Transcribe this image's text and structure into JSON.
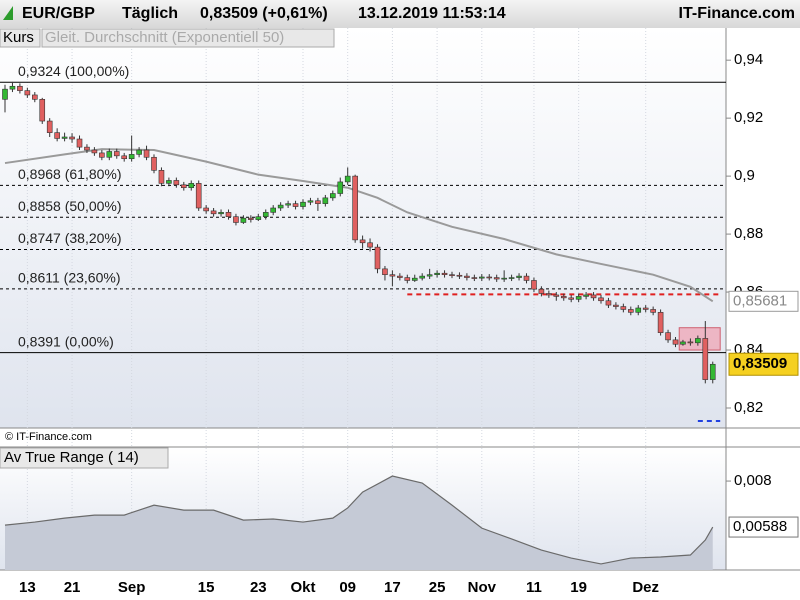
{
  "header": {
    "symbol": "EUR/GBP",
    "period": "Täglich",
    "quote": "0,83509 (+0,61%)",
    "timestamp": "13.12.2019 11:53:14",
    "brand": "IT-Finance.com",
    "copyright": "© IT-Finance.com"
  },
  "chart_data": [
    {
      "type": "candlestick",
      "categories": [
        null,
        null,
        null,
        "13",
        null,
        null,
        null,
        null,
        null,
        "21",
        null,
        null,
        null,
        null,
        null,
        null,
        null,
        "Sep",
        null,
        null,
        null,
        null,
        null,
        null,
        null,
        null,
        null,
        "15",
        null,
        null,
        null,
        null,
        null,
        null,
        "23",
        null,
        null,
        null,
        null,
        null,
        "Okt",
        null,
        null,
        null,
        null,
        null,
        "09",
        null,
        null,
        null,
        null,
        null,
        "17",
        null,
        null,
        null,
        null,
        null,
        "25",
        null,
        null,
        null,
        null,
        null,
        "Nov",
        null,
        null,
        null,
        null,
        null,
        null,
        "11",
        null,
        null,
        null,
        null,
        null,
        "19",
        null,
        null,
        null,
        null,
        null,
        null,
        null,
        null,
        "Dez",
        null,
        null,
        null,
        null,
        null,
        null,
        null,
        null,
        null
      ],
      "series": [
        {
          "name": "Kurs",
          "up_color": "#33b833",
          "down_color": "#e06060",
          "open": [
            0.9265,
            0.93,
            0.931,
            0.9295,
            0.928,
            0.9265,
            0.919,
            0.915,
            0.913,
            0.9135,
            0.9128,
            0.91,
            0.909,
            0.908,
            0.9065,
            0.9085,
            0.907,
            0.906,
            0.9075,
            0.909,
            0.9065,
            0.902,
            0.8975,
            0.8985,
            0.897,
            0.896,
            0.8975,
            0.889,
            0.888,
            0.887,
            0.8875,
            0.886,
            0.884,
            0.8855,
            0.885,
            0.886,
            0.8875,
            0.889,
            0.89,
            0.8905,
            0.8895,
            0.891,
            0.8915,
            0.8905,
            0.8925,
            0.894,
            0.898,
            0.9,
            0.878,
            0.877,
            0.8755,
            0.868,
            0.866,
            0.8655,
            0.865,
            0.864,
            0.8648,
            0.8655,
            0.866,
            0.8665,
            0.866,
            0.8658,
            0.8655,
            0.865,
            0.8648,
            0.8652,
            0.865,
            0.8645,
            0.8648,
            0.865,
            0.8655,
            0.864,
            0.861,
            0.8595,
            0.859,
            0.8585,
            0.858,
            0.8575,
            0.8585,
            0.859,
            0.858,
            0.857,
            0.8555,
            0.855,
            0.854,
            0.853,
            0.8545,
            0.854,
            0.853,
            0.846,
            0.8435,
            0.842,
            0.8428,
            0.8425,
            0.844,
            0.8298
          ],
          "high": [
            0.9315,
            0.9325,
            0.932,
            0.9305,
            0.929,
            0.927,
            0.92,
            0.9165,
            0.915,
            0.9148,
            0.914,
            0.911,
            0.91,
            0.909,
            0.9095,
            0.9095,
            0.908,
            0.914,
            0.91,
            0.9105,
            0.9075,
            0.903,
            0.8995,
            0.8995,
            0.898,
            0.8985,
            0.8985,
            0.89,
            0.889,
            0.8885,
            0.8885,
            0.887,
            0.8865,
            0.8865,
            0.887,
            0.8885,
            0.89,
            0.891,
            0.8915,
            0.8915,
            0.892,
            0.8925,
            0.8925,
            0.8935,
            0.895,
            0.8995,
            0.903,
            0.9005,
            0.8795,
            0.8785,
            0.8765,
            0.869,
            0.8675,
            0.8665,
            0.866,
            0.866,
            0.8665,
            0.868,
            0.8675,
            0.8675,
            0.867,
            0.8668,
            0.8665,
            0.866,
            0.8662,
            0.8662,
            0.866,
            0.8675,
            0.866,
            0.8665,
            0.8665,
            0.865,
            0.862,
            0.8605,
            0.86,
            0.8595,
            0.859,
            0.8595,
            0.86,
            0.86,
            0.859,
            0.858,
            0.8565,
            0.856,
            0.855,
            0.8555,
            0.8555,
            0.855,
            0.854,
            0.847,
            0.8445,
            0.8435,
            0.844,
            0.845,
            0.85,
            0.836
          ],
          "low": [
            0.922,
            0.929,
            0.9285,
            0.927,
            0.9255,
            0.918,
            0.9135,
            0.912,
            0.912,
            0.9115,
            0.909,
            0.908,
            0.907,
            0.9055,
            0.9055,
            0.906,
            0.905,
            0.905,
            0.9065,
            0.9055,
            0.901,
            0.8965,
            0.8965,
            0.896,
            0.895,
            0.895,
            0.888,
            0.887,
            0.886,
            0.886,
            0.885,
            0.883,
            0.8835,
            0.884,
            0.8845,
            0.885,
            0.8865,
            0.888,
            0.889,
            0.8885,
            0.8885,
            0.89,
            0.888,
            0.8895,
            0.8915,
            0.893,
            0.897,
            0.877,
            0.875,
            0.874,
            0.8665,
            0.864,
            0.862,
            0.864,
            0.863,
            0.8635,
            0.864,
            0.8645,
            0.865,
            0.865,
            0.8648,
            0.8645,
            0.864,
            0.8638,
            0.8638,
            0.864,
            0.8635,
            0.8635,
            0.8638,
            0.864,
            0.863,
            0.86,
            0.8585,
            0.858,
            0.857,
            0.857,
            0.8565,
            0.8565,
            0.8575,
            0.857,
            0.856,
            0.8545,
            0.854,
            0.853,
            0.852,
            0.852,
            0.853,
            0.852,
            0.845,
            0.8425,
            0.841,
            0.8415,
            0.8415,
            0.8415,
            0.8285,
            0.8285
          ],
          "close": [
            0.93,
            0.931,
            0.9295,
            0.928,
            0.9265,
            0.919,
            0.915,
            0.913,
            0.9135,
            0.9128,
            0.91,
            0.909,
            0.908,
            0.9065,
            0.9085,
            0.907,
            0.906,
            0.9075,
            0.909,
            0.9065,
            0.902,
            0.8975,
            0.8985,
            0.897,
            0.896,
            0.8975,
            0.889,
            0.888,
            0.887,
            0.8875,
            0.886,
            0.884,
            0.8855,
            0.885,
            0.886,
            0.8875,
            0.889,
            0.89,
            0.8905,
            0.8895,
            0.891,
            0.8915,
            0.8905,
            0.8925,
            0.894,
            0.898,
            0.9,
            0.878,
            0.877,
            0.8755,
            0.868,
            0.866,
            0.8655,
            0.865,
            0.864,
            0.8648,
            0.8655,
            0.866,
            0.8665,
            0.866,
            0.8658,
            0.8655,
            0.865,
            0.8648,
            0.8652,
            0.865,
            0.8645,
            0.8648,
            0.865,
            0.8655,
            0.864,
            0.861,
            0.8595,
            0.859,
            0.8585,
            0.858,
            0.8575,
            0.8585,
            0.859,
            0.858,
            0.857,
            0.8555,
            0.855,
            0.854,
            0.853,
            0.8545,
            0.854,
            0.853,
            0.846,
            0.8435,
            0.842,
            0.8428,
            0.8425,
            0.844,
            0.8298,
            0.83509
          ]
        }
      ],
      "overlay": {
        "name": "Gleit. Durchschnitt (Exponentiell 50)",
        "color": "#9a9a9a",
        "x": [
          0,
          8,
          13,
          20,
          27,
          34,
          40,
          46,
          50,
          54,
          60,
          67,
          74,
          80,
          87,
          92,
          95
        ],
        "values": [
          0.9045,
          0.9075,
          0.9093,
          0.909,
          0.905,
          0.9005,
          0.8983,
          0.896,
          0.8925,
          0.8875,
          0.8825,
          0.8783,
          0.873,
          0.8697,
          0.866,
          0.8618,
          0.85681
        ],
        "value_labels": [
          null,
          null,
          null,
          null,
          null,
          null,
          null,
          null,
          null,
          null,
          null,
          null,
          null,
          null,
          null,
          null,
          "0,85681"
        ]
      },
      "price_tag": {
        "value": 0.83509,
        "label": "0,83509"
      },
      "levels": [
        {
          "value": 0.9324,
          "label": "0,9324 (100,00%)",
          "style": "solid"
        },
        {
          "value": 0.8968,
          "label": "0,8968 (61,80%)",
          "style": "dashed"
        },
        {
          "value": 0.8858,
          "label": "0,8858 (50,00%)",
          "style": "dashed"
        },
        {
          "value": 0.8747,
          "label": "0,8747 (38,20%)",
          "style": "dashed"
        },
        {
          "value": 0.8611,
          "label": "0,8611 (23,60%)",
          "style": "dashed"
        },
        {
          "value": 0.8391,
          "label": "0,8391 (0,00%)",
          "style": "solid"
        }
      ],
      "annotations": [
        {
          "kind": "line",
          "value": 0.8592,
          "x": [
            54,
            96
          ],
          "color": "#e02020"
        },
        {
          "kind": "line",
          "value": 0.8155,
          "x": [
            93,
            96
          ],
          "color": "#2040e0"
        },
        {
          "kind": "box",
          "low": 0.84,
          "high": 0.8477,
          "x": [
            90.5,
            96
          ],
          "color": "#f0a0b0"
        }
      ],
      "ylim": [
        0.8131,
        0.9511
      ],
      "yticks": [
        {
          "value": 0.94,
          "label": "0,94"
        },
        {
          "value": 0.92,
          "label": "0,92"
        },
        {
          "value": 0.9,
          "label": "0,9"
        },
        {
          "value": 0.88,
          "label": "0,88"
        },
        {
          "value": 0.86,
          "label": "0,86"
        },
        {
          "value": 0.84,
          "label": "0,84"
        },
        {
          "value": 0.82,
          "label": "0,82"
        }
      ]
    },
    {
      "type": "area",
      "title": "Av True Range ( 14)",
      "color": "#c5cad6",
      "x": [
        0,
        4,
        8,
        12,
        16,
        20,
        24,
        28,
        32,
        36,
        40,
        44,
        46,
        48,
        52,
        56,
        60,
        64,
        68,
        72,
        76,
        80,
        84,
        88,
        92,
        94,
        95
      ],
      "values": [
        0.00597,
        0.00611,
        0.00629,
        0.00643,
        0.00643,
        0.00689,
        0.00666,
        0.00666,
        0.0062,
        0.00625,
        0.00611,
        0.00629,
        0.00676,
        0.00749,
        0.00823,
        0.00791,
        0.00689,
        0.00583,
        0.00533,
        0.00482,
        0.00445,
        0.00418,
        0.00445,
        0.0045,
        0.00459,
        0.00528,
        0.00588
      ],
      "value_labels": [
        null,
        null,
        null,
        null,
        null,
        null,
        null,
        null,
        null,
        null,
        null,
        null,
        null,
        null,
        null,
        null,
        null,
        null,
        null,
        null,
        null,
        null,
        null,
        null,
        null,
        null,
        "0,00588"
      ],
      "ylim": [
        0.0039,
        0.00957
      ],
      "yticks": [
        {
          "value": 0.008,
          "label": "0,008"
        }
      ]
    }
  ]
}
